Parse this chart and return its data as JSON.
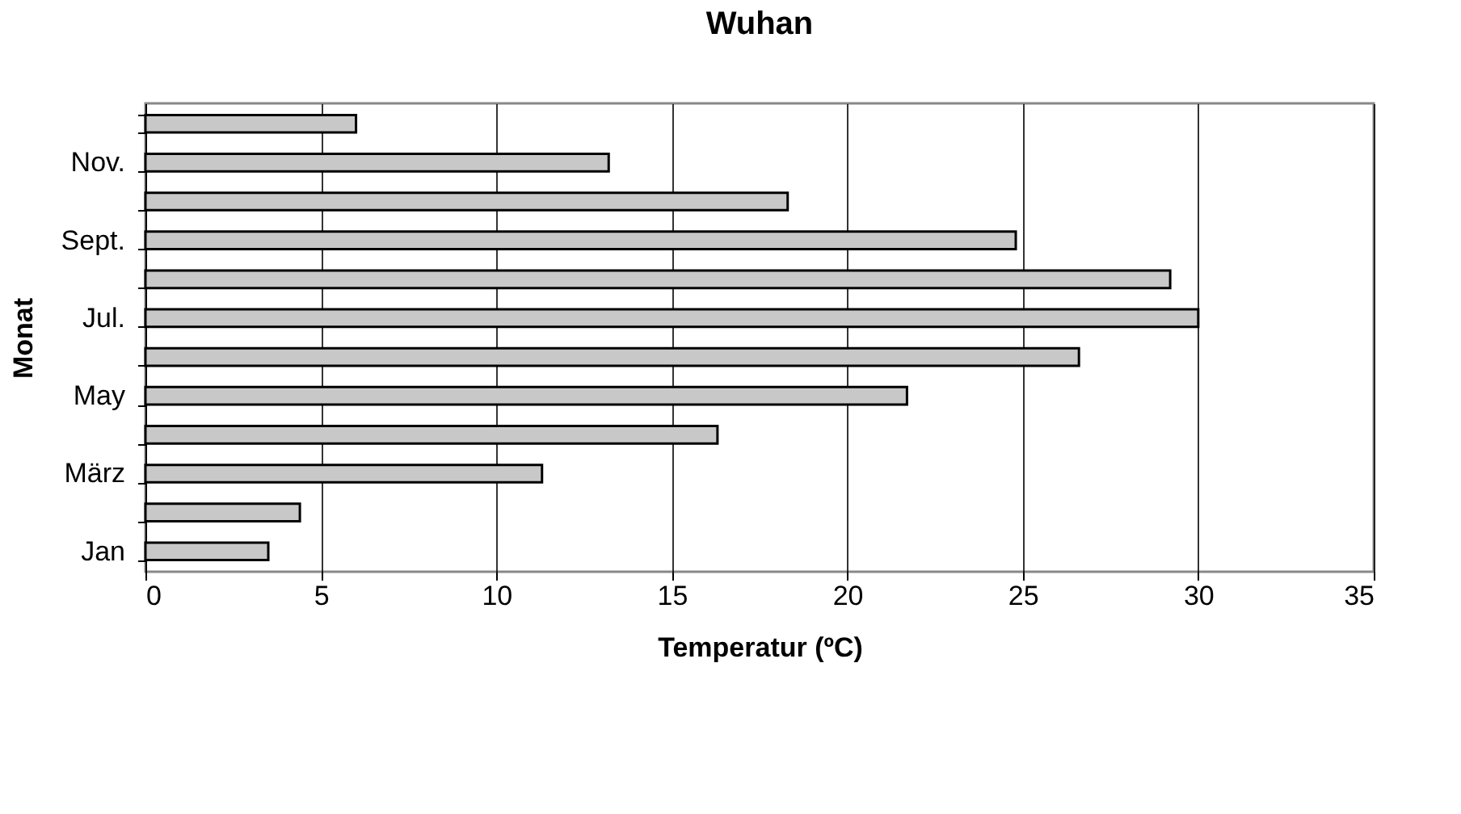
{
  "chart_data": {
    "type": "bar",
    "orientation": "horizontal",
    "title": "Wuhan",
    "xlabel": "Temperatur (ºC)",
    "ylabel": "Monat",
    "categories": [
      null,
      "Nov.",
      null,
      "Sept.",
      null,
      "Jul.",
      null,
      "May",
      null,
      "März",
      null,
      "Jan"
    ],
    "values": [
      6.0,
      13.2,
      18.3,
      24.8,
      29.2,
      30.0,
      26.6,
      21.7,
      16.3,
      11.3,
      4.4,
      3.5
    ],
    "color": "#c8c8c8",
    "xlim": [
      0,
      35
    ],
    "xticks": [
      0,
      5,
      10,
      15,
      20,
      25,
      30,
      35
    ],
    "grid": "x"
  }
}
